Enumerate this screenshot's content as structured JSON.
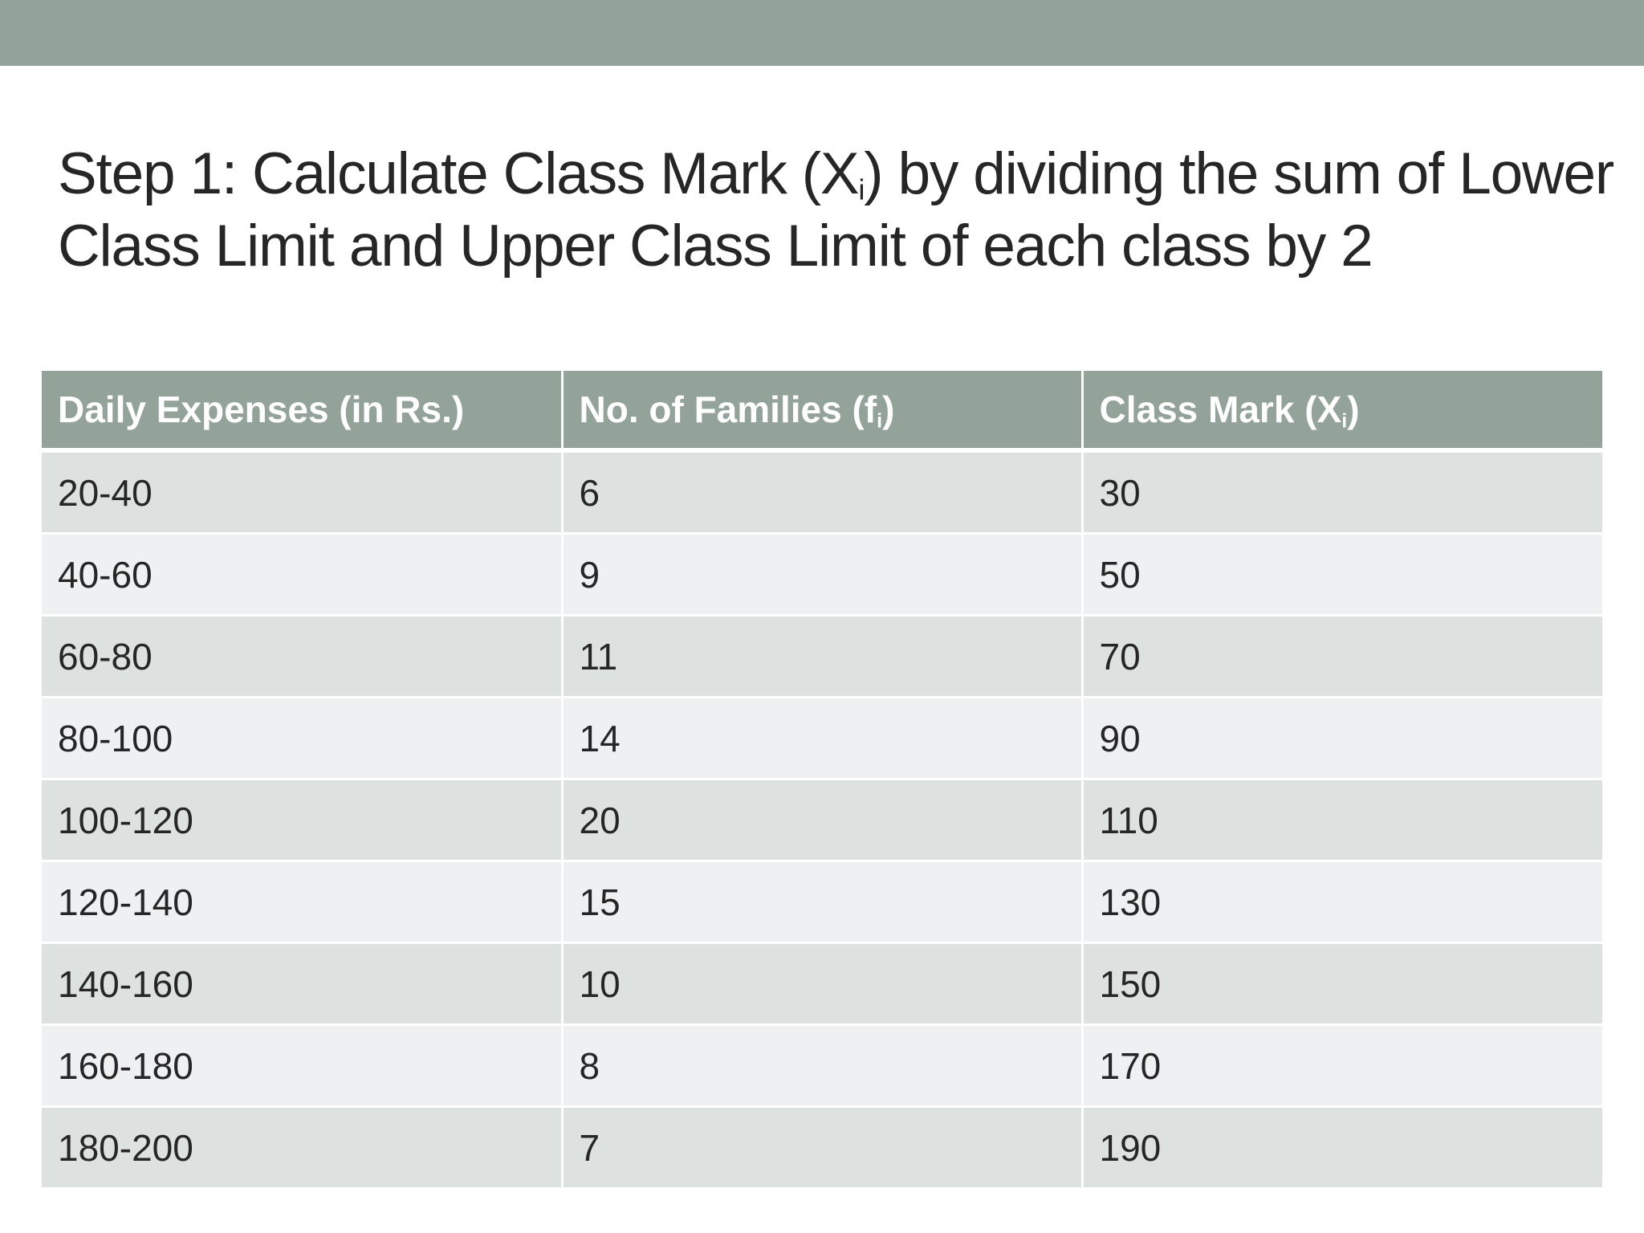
{
  "title": {
    "part1": "Step 1: Calculate Class Mark (X",
    "sub": "i",
    "part2": ") by dividing the sum of Lower",
    "line2": "Class Limit and Upper Class Limit of each class by 2"
  },
  "table": {
    "headers": [
      {
        "text": "Daily Expenses (in Rs.)",
        "sub": "",
        "suffix": ""
      },
      {
        "text": "No. of Families (f",
        "sub": "i",
        "suffix": ")"
      },
      {
        "text": "Class Mark (X",
        "sub": "i",
        "suffix": ")"
      }
    ],
    "rows": [
      [
        "20-40",
        "6",
        "30"
      ],
      [
        "40-60",
        "9",
        "50"
      ],
      [
        "60-80",
        "11",
        "70"
      ],
      [
        "80-100",
        "14",
        "90"
      ],
      [
        "100-120",
        "20",
        "110"
      ],
      [
        "120-140",
        "15",
        "130"
      ],
      [
        "140-160",
        "10",
        "150"
      ],
      [
        "160-180",
        "8",
        "170"
      ],
      [
        "180-200",
        "7",
        "190"
      ]
    ]
  },
  "colors": {
    "accent": "#93a399",
    "row_dark": "#dde1e0",
    "row_light": "#eff0f1",
    "text": "#262626"
  }
}
